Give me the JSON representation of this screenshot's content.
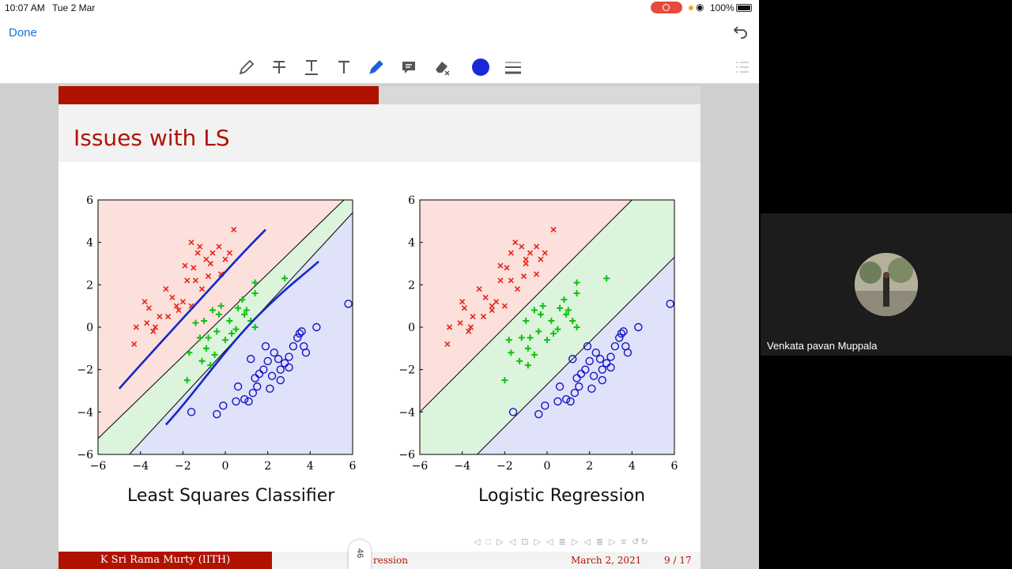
{
  "status": {
    "time": "10:07 AM",
    "date": "Tue 2 Mar",
    "battery": "100%"
  },
  "nav": {
    "done_label": "Done"
  },
  "toolbar": {
    "tools": [
      "pencil-icon",
      "strike-text-icon",
      "underline-text-icon",
      "text-icon",
      "pen-icon",
      "comment-icon",
      "eraser-icon",
      "color-picker",
      "line-width-icon"
    ],
    "color": "#1a28d8"
  },
  "slide": {
    "title": "Issues with LS",
    "progress": 0.5,
    "footer": {
      "author": "K Sri Rama Murty  (IITH)",
      "section": "ression",
      "date": "March 2, 2021",
      "page": "9 / 17",
      "badge": "46"
    }
  },
  "chart_data": [
    {
      "type": "scatter",
      "title": "Least Squares Classifier",
      "xlim": [
        -6,
        6
      ],
      "ylim": [
        -6,
        6
      ],
      "xticks": [
        "−6",
        "−4",
        "−2",
        "0",
        "2",
        "4",
        "6"
      ],
      "yticks": [
        "6",
        "4",
        "2",
        "0",
        "−2",
        "−4",
        "−6"
      ],
      "series": [
        {
          "color": "#e8241a",
          "marker": "x",
          "points": [
            [
              -4.3,
              -0.8
            ],
            [
              -4.2,
              0
            ],
            [
              -3.7,
              0.2
            ],
            [
              -3.8,
              1.2
            ],
            [
              -3.6,
              0.9
            ],
            [
              -3.4,
              -0.2
            ],
            [
              -3.1,
              0.5
            ],
            [
              -2.8,
              1.8
            ],
            [
              -2.5,
              1.4
            ],
            [
              -2.2,
              0.8
            ],
            [
              -2,
              1.2
            ],
            [
              -1.8,
              2.2
            ],
            [
              -1.6,
              1
            ],
            [
              -1.5,
              2.8
            ],
            [
              -1.3,
              3.5
            ],
            [
              -1.6,
              4
            ],
            [
              -1.2,
              3.8
            ],
            [
              -0.9,
              3.2
            ],
            [
              -0.8,
              2.4
            ],
            [
              -0.6,
              3.5
            ],
            [
              -0.3,
              3.8
            ],
            [
              0,
              3.2
            ],
            [
              0.2,
              3.5
            ],
            [
              -0.2,
              2.5
            ],
            [
              0.4,
              4.6
            ],
            [
              -1.1,
              1.8
            ],
            [
              -1.9,
              2.9
            ],
            [
              -2.7,
              0.5
            ],
            [
              -3.3,
              0
            ],
            [
              -0.7,
              3.0
            ],
            [
              -1.4,
              2.2
            ],
            [
              -2.3,
              1.0
            ]
          ]
        },
        {
          "color": "#10c010",
          "marker": "+",
          "points": [
            [
              -1.8,
              -2.5
            ],
            [
              -1.7,
              -1.2
            ],
            [
              -1.4,
              0.2
            ],
            [
              -1.2,
              -0.5
            ],
            [
              -1,
              0.3
            ],
            [
              -0.9,
              -1.0
            ],
            [
              -0.8,
              -0.5
            ],
            [
              -0.6,
              0.8
            ],
            [
              -0.4,
              -0.2
            ],
            [
              -0.3,
              0.6
            ],
            [
              0,
              -0.6
            ],
            [
              0.2,
              0.3
            ],
            [
              0.3,
              -0.3
            ],
            [
              0.6,
              0.9
            ],
            [
              0.8,
              1.3
            ],
            [
              1.0,
              0.8
            ],
            [
              1.2,
              0.3
            ],
            [
              1.4,
              1.6
            ],
            [
              1.4,
              2.1
            ],
            [
              2.8,
              2.3
            ],
            [
              -0.2,
              1.0
            ],
            [
              0.5,
              -0.1
            ],
            [
              -1.1,
              -1.6
            ],
            [
              -0.7,
              -1.8
            ],
            [
              1.4,
              0.0
            ],
            [
              0.9,
              0.6
            ],
            [
              -0.5,
              -1.3
            ]
          ]
        },
        {
          "color": "#1414c8",
          "marker": "o",
          "points": [
            [
              -1.6,
              -4
            ],
            [
              -0.4,
              -4.1
            ],
            [
              -0.1,
              -3.7
            ],
            [
              0.5,
              -3.5
            ],
            [
              0.6,
              -2.8
            ],
            [
              0.9,
              -3.4
            ],
            [
              1.1,
              -3.5
            ],
            [
              1.3,
              -3.1
            ],
            [
              1.5,
              -2.8
            ],
            [
              1.6,
              -2.2
            ],
            [
              1.8,
              -2.0
            ],
            [
              2.0,
              -1.6
            ],
            [
              2.2,
              -2.3
            ],
            [
              2.3,
              -1.2
            ],
            [
              2.5,
              -1.5
            ],
            [
              2.6,
              -2.0
            ],
            [
              2.8,
              -1.7
            ],
            [
              3.0,
              -1.4
            ],
            [
              3.2,
              -0.9
            ],
            [
              3.4,
              -0.5
            ],
            [
              3.5,
              -0.3
            ],
            [
              3.7,
              -0.9
            ],
            [
              4.3,
              0
            ],
            [
              3.0,
              -1.9
            ],
            [
              5.8,
              1.1
            ],
            [
              1.2,
              -1.5
            ],
            [
              1.9,
              -0.9
            ],
            [
              2.6,
              -2.5
            ],
            [
              1.4,
              -2.4
            ],
            [
              2.1,
              -2.9
            ],
            [
              3.6,
              -0.2
            ],
            [
              3.8,
              -1.2
            ]
          ]
        }
      ]
    },
    {
      "type": "scatter",
      "title": "Logistic Regression",
      "xlim": [
        -6,
        6
      ],
      "ylim": [
        -6,
        6
      ],
      "xticks": [
        "−6",
        "−4",
        "−2",
        "0",
        "2",
        "4",
        "6"
      ],
      "yticks": [
        "6",
        "4",
        "2",
        "0",
        "−2",
        "−4",
        "−6"
      ],
      "series": [
        {
          "color": "#e8241a",
          "marker": "x",
          "points": [
            [
              -4.7,
              -0.8
            ],
            [
              -4.6,
              0
            ],
            [
              -4.1,
              0.2
            ],
            [
              -4.0,
              1.2
            ],
            [
              -3.9,
              0.9
            ],
            [
              -3.7,
              -0.2
            ],
            [
              -3.5,
              0.5
            ],
            [
              -3.2,
              1.8
            ],
            [
              -2.9,
              1.4
            ],
            [
              -2.6,
              0.8
            ],
            [
              -2.4,
              1.2
            ],
            [
              -2.2,
              2.2
            ],
            [
              -2.0,
              1.0
            ],
            [
              -1.9,
              2.8
            ],
            [
              -1.7,
              3.5
            ],
            [
              -1.5,
              4.0
            ],
            [
              -1.2,
              3.8
            ],
            [
              -1.0,
              3.2
            ],
            [
              -1.1,
              2.4
            ],
            [
              -0.8,
              3.5
            ],
            [
              -0.5,
              3.8
            ],
            [
              -0.3,
              3.2
            ],
            [
              -0.1,
              3.5
            ],
            [
              -0.5,
              2.5
            ],
            [
              0.3,
              4.6
            ],
            [
              -1.4,
              1.8
            ],
            [
              -2.2,
              2.9
            ],
            [
              -3.0,
              0.5
            ],
            [
              -3.6,
              0.0
            ],
            [
              -1.0,
              3.0
            ],
            [
              -1.7,
              2.2
            ],
            [
              -2.6,
              1.0
            ]
          ]
        },
        {
          "color": "#10c010",
          "marker": "+",
          "points": [
            [
              -2.0,
              -2.5
            ],
            [
              -1.7,
              -1.2
            ],
            [
              -1.8,
              -0.6
            ],
            [
              -1.2,
              -0.5
            ],
            [
              -1.0,
              0.3
            ],
            [
              -0.9,
              -1.0
            ],
            [
              -0.8,
              -0.5
            ],
            [
              -0.6,
              0.8
            ],
            [
              -0.4,
              -0.2
            ],
            [
              -0.3,
              0.6
            ],
            [
              0.0,
              -0.6
            ],
            [
              0.2,
              0.3
            ],
            [
              0.3,
              -0.3
            ],
            [
              0.6,
              0.9
            ],
            [
              0.8,
              1.3
            ],
            [
              1.0,
              0.8
            ],
            [
              1.2,
              0.3
            ],
            [
              1.4,
              1.6
            ],
            [
              1.4,
              2.1
            ],
            [
              2.8,
              2.3
            ],
            [
              -0.2,
              1.0
            ],
            [
              0.5,
              -0.1
            ],
            [
              -1.3,
              -1.6
            ],
            [
              -0.9,
              -1.8
            ],
            [
              1.4,
              0.0
            ],
            [
              0.9,
              0.6
            ],
            [
              -0.6,
              -1.3
            ]
          ]
        },
        {
          "color": "#1414c8",
          "marker": "o",
          "points": [
            [
              -1.6,
              -4
            ],
            [
              -0.4,
              -4.1
            ],
            [
              -0.1,
              -3.7
            ],
            [
              0.5,
              -3.5
            ],
            [
              0.6,
              -2.8
            ],
            [
              0.9,
              -3.4
            ],
            [
              1.1,
              -3.5
            ],
            [
              1.3,
              -3.1
            ],
            [
              1.5,
              -2.8
            ],
            [
              1.6,
              -2.2
            ],
            [
              1.8,
              -2.0
            ],
            [
              2.0,
              -1.6
            ],
            [
              2.2,
              -2.3
            ],
            [
              2.3,
              -1.2
            ],
            [
              2.5,
              -1.5
            ],
            [
              2.6,
              -2.0
            ],
            [
              2.8,
              -1.7
            ],
            [
              3.0,
              -1.4
            ],
            [
              3.2,
              -0.9
            ],
            [
              3.4,
              -0.5
            ],
            [
              3.5,
              -0.3
            ],
            [
              3.7,
              -0.9
            ],
            [
              4.3,
              0
            ],
            [
              3.0,
              -1.9
            ],
            [
              5.8,
              1.1
            ],
            [
              1.2,
              -1.5
            ],
            [
              1.9,
              -0.9
            ],
            [
              2.6,
              -2.5
            ],
            [
              1.4,
              -2.4
            ],
            [
              2.1,
              -2.9
            ],
            [
              3.6,
              -0.2
            ],
            [
              3.8,
              -1.2
            ]
          ]
        }
      ]
    }
  ],
  "participant": {
    "name": "Venkata pavan Muppala"
  }
}
